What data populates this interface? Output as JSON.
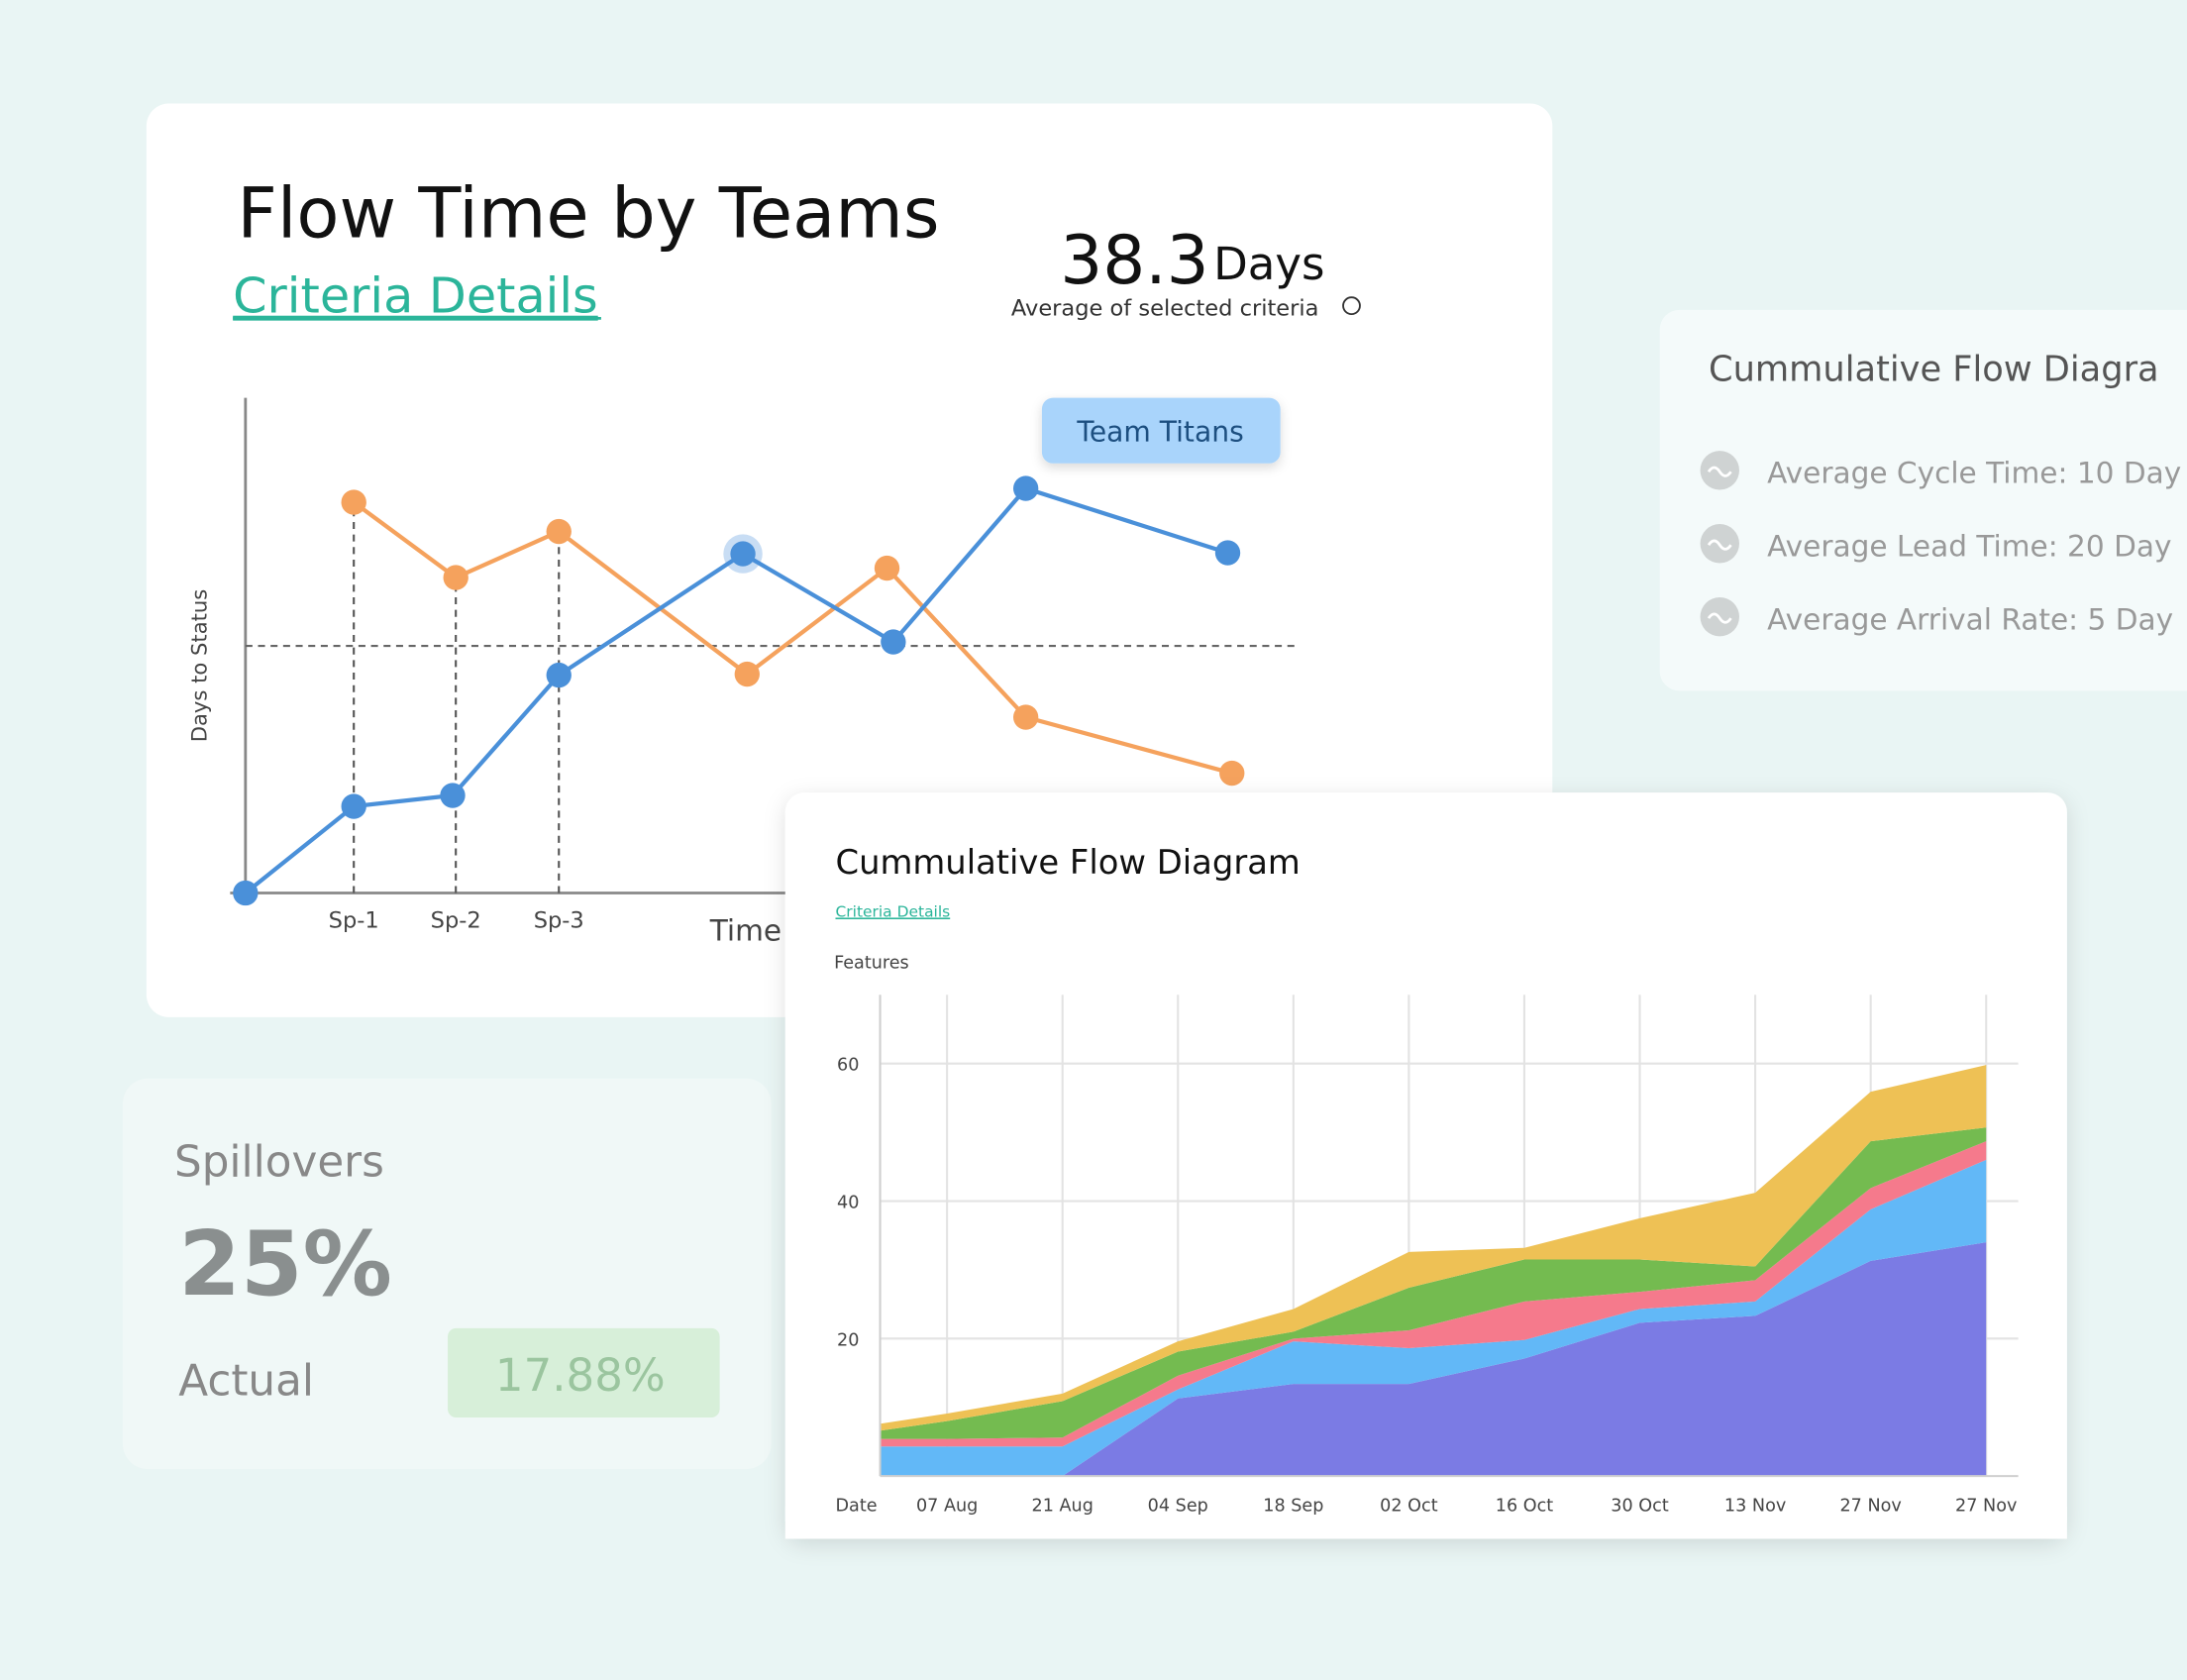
{
  "chart_data": [
    {
      "type": "line",
      "title": "Flow Time by Teams",
      "link": "Criteria Details",
      "metric_value": 38.3,
      "metric_unit": "Days",
      "metric_caption": "Average of selected criteria",
      "xlabel": "Time",
      "ylabel": "Days to Status",
      "xlim": [
        0,
        100
      ],
      "ylim": [
        0,
        100
      ],
      "xticks": [
        {
          "value": 10.3,
          "label": "Sp-1"
        },
        {
          "value": 20.0,
          "label": "Sp-2"
        },
        {
          "value": 29.8,
          "label": "Sp-3"
        }
      ],
      "reference_value": 49.9,
      "series": [
        {
          "name": "Team Titans",
          "color": "#4a90d9",
          "highlighted_point": 4,
          "x": [
            0,
            10.3,
            19.7,
            29.8,
            47.3,
            61.6,
            74.2,
            93.4
          ],
          "values": [
            0,
            17.5,
            19.7,
            44.0,
            68.5,
            50.7,
            81.7,
            68.7
          ]
        },
        {
          "color": "#f5a25d",
          "x": [
            10.3,
            20.0,
            29.8,
            47.7,
            61.0,
            74.2,
            93.8
          ],
          "values": [
            78.9,
            63.7,
            73.0,
            44.2,
            65.6,
            35.5,
            24.2
          ]
        }
      ]
    },
    {
      "type": "area",
      "stacked": true,
      "title": "Cummulative Flow Diagram",
      "link": "Criteria Details",
      "xlabel": "Date",
      "ylabel": "Features",
      "categories": [
        null,
        "07 Aug",
        "21 Aug",
        "04 Sep",
        "18 Sep",
        "02 Oct",
        "16 Oct",
        "30 Oct",
        "13 Nov",
        "27 Nov",
        "27 Nov"
      ],
      "ylim": [
        0,
        70
      ],
      "yticks": [
        20,
        40,
        60
      ],
      "grid": true,
      "series": [
        {
          "color": "#7b7be4",
          "values": [
            0,
            0,
            0,
            11.3,
            13.4,
            13.4,
            17.1,
            22.3,
            23.3,
            31.3,
            34.0
          ]
        },
        {
          "color": "#62b8f7",
          "values": [
            4.3,
            4.3,
            4.3,
            1.3,
            6.2,
            5.2,
            2.7,
            2.0,
            2.1,
            7.5,
            12.0
          ]
        },
        {
          "color": "#f57a8c",
          "values": [
            1.1,
            1.1,
            1.3,
            2.0,
            0.4,
            2.6,
            5.6,
            2.5,
            3.1,
            3.1,
            2.7
          ]
        },
        {
          "color": "#74bb50",
          "values": [
            1.2,
            2.6,
            5.3,
            3.5,
            1.0,
            6.2,
            6.1,
            4.7,
            2.0,
            6.8,
            2.0
          ]
        },
        {
          "color": "#eec155",
          "values": [
            1.0,
            1.1,
            1.1,
            1.5,
            3.3,
            5.2,
            1.7,
            6.0,
            10.7,
            7.2,
            9.1
          ]
        }
      ]
    }
  ],
  "side_card": {
    "title": "Cummulative Flow Diagra",
    "items": [
      "Average Cycle Time: 10 Day",
      "Average Lead Time: 20 Day",
      "Average Arrival Rate: 5 Day"
    ]
  },
  "spillovers": {
    "title": "Spillovers",
    "value": "25%",
    "label": "Actual",
    "actual": "17.88%"
  }
}
